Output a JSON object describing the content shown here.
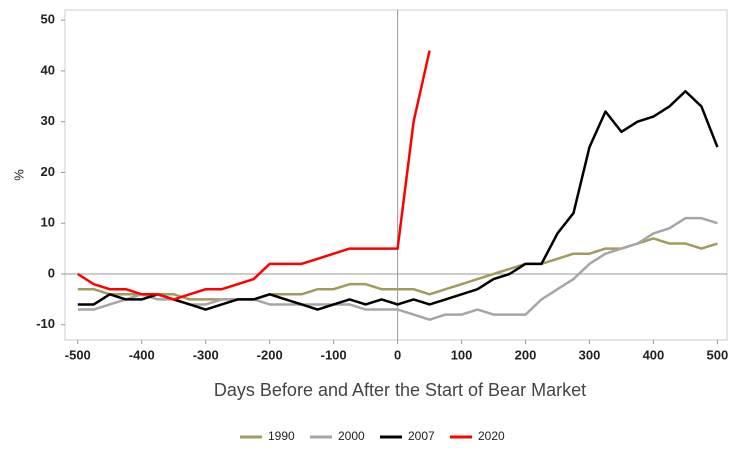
{
  "chart_data": {
    "type": "line",
    "x_label": "Days Before and After the Start of Bear Market",
    "y_label": "%",
    "x": [
      -500,
      -475,
      -450,
      -425,
      -400,
      -375,
      -350,
      -325,
      -300,
      -275,
      -250,
      -225,
      -200,
      -175,
      -150,
      -125,
      -100,
      -75,
      -50,
      -25,
      0,
      25,
      50,
      75,
      100,
      125,
      150,
      175,
      200,
      225,
      250,
      275,
      300,
      325,
      350,
      375,
      400,
      425,
      450,
      475,
      500
    ],
    "series": [
      {
        "name": "1990",
        "color": "#a39a5e",
        "values": [
          -3,
          -3,
          -4,
          -4,
          -4,
          -4,
          -4,
          -5,
          -5,
          -5,
          -5,
          -5,
          -4,
          -4,
          -4,
          -3,
          -3,
          -2,
          -2,
          -3,
          -3,
          -3,
          -4,
          -3,
          -2,
          -1,
          0,
          1,
          2,
          2,
          3,
          4,
          4,
          5,
          5,
          6,
          7,
          6,
          6,
          5,
          6
        ]
      },
      {
        "name": "2000",
        "color": "#a6a6a6",
        "values": [
          -7,
          -7,
          -6,
          -5,
          -4,
          -5,
          -5,
          -6,
          -6,
          -5,
          -5,
          -5,
          -6,
          -6,
          -6,
          -6,
          -6,
          -6,
          -7,
          -7,
          -7,
          -8,
          -9,
          -8,
          -8,
          -7,
          -8,
          -8,
          -8,
          -5,
          -3,
          -1,
          2,
          4,
          5,
          6,
          8,
          9,
          11,
          11,
          10
        ]
      },
      {
        "name": "2007",
        "color": "#000000",
        "values": [
          -6,
          -6,
          -4,
          -5,
          -5,
          -4,
          -5,
          -6,
          -7,
          -6,
          -5,
          -5,
          -4,
          -5,
          -6,
          -7,
          -6,
          -5,
          -6,
          -5,
          -6,
          -5,
          -6,
          -5,
          -4,
          -3,
          -1,
          0,
          2,
          2,
          8,
          12,
          25,
          32,
          28,
          30,
          31,
          33,
          36,
          33,
          25
        ]
      },
      {
        "name": "2020",
        "color": "#ff0000",
        "values": [
          0,
          -2,
          -3,
          -3,
          -4,
          -4,
          -5,
          -4,
          -3,
          -3,
          -2,
          -1,
          2,
          2,
          2,
          3,
          4,
          5,
          5,
          5,
          5,
          30,
          44,
          null,
          null,
          null,
          null,
          null,
          null,
          null,
          null,
          null,
          null,
          null,
          null,
          null,
          null,
          null,
          null,
          null,
          null
        ]
      }
    ],
    "xlim": [
      -520,
      515
    ],
    "ylim": [
      -13,
      52
    ],
    "xticks": [
      -500,
      -400,
      -300,
      -200,
      -100,
      0,
      100,
      200,
      300,
      400,
      500
    ],
    "yticks": [
      -10,
      0,
      10,
      20,
      30,
      40,
      50
    ],
    "grid": false
  }
}
